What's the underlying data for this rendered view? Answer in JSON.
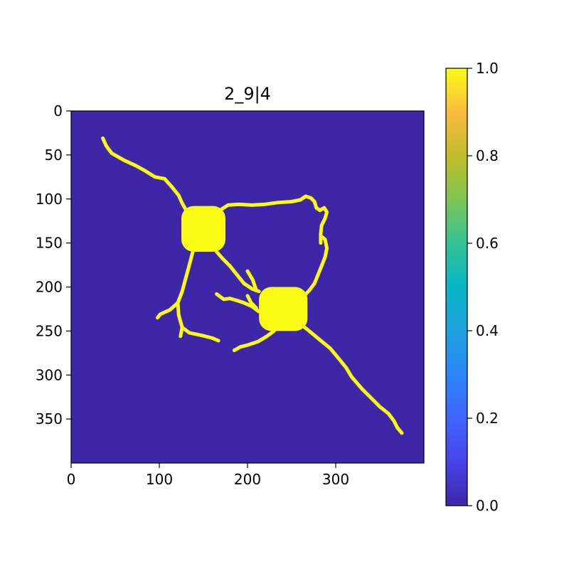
{
  "chart_data": [
    {
      "type": "heatmap",
      "title": "2_9|4",
      "xlabel": "",
      "ylabel": "",
      "image_shape": [
        400,
        400
      ],
      "xlim": [
        0,
        400
      ],
      "ylim": [
        400,
        0
      ],
      "x_ticks": [
        0,
        100,
        200,
        300
      ],
      "x_tick_labels": [
        "0",
        "100",
        "200",
        "300"
      ],
      "y_ticks": [
        0,
        50,
        100,
        150,
        200,
        250,
        300,
        350
      ],
      "y_tick_labels": [
        "0",
        "50",
        "100",
        "150",
        "200",
        "250",
        "300",
        "350"
      ],
      "background_value": 0.0,
      "foreground_value": 1.0,
      "cell_bodies": [
        {
          "x_range": [
            125,
            175
          ],
          "y_range": [
            108,
            160
          ],
          "value": 1.0
        },
        {
          "x_range": [
            213,
            268
          ],
          "y_range": [
            200,
            250
          ],
          "value": 1.0
        }
      ],
      "processes": [
        {
          "value": 1.0,
          "points": [
            [
              36,
              31
            ],
            [
              40,
              40
            ],
            [
              46,
              48
            ],
            [
              60,
              56
            ],
            [
              73,
              62
            ],
            [
              84,
              68
            ],
            [
              95,
              75
            ],
            [
              106,
              77
            ],
            [
              114,
              86
            ],
            [
              122,
              96
            ],
            [
              126,
              105
            ],
            [
              130,
              112
            ],
            [
              138,
              114
            ]
          ]
        },
        {
          "value": 1.0,
          "points": [
            [
              170,
              112
            ],
            [
              178,
              107
            ],
            [
              190,
              106
            ],
            [
              205,
              107
            ],
            [
              220,
              106
            ],
            [
              235,
              104
            ],
            [
              250,
              103
            ],
            [
              260,
              101
            ],
            [
              266,
              97
            ],
            [
              272,
              99
            ],
            [
              276,
              103
            ],
            [
              278,
              110
            ],
            [
              282,
              113
            ],
            [
              287,
              110
            ],
            [
              290,
              115
            ],
            [
              288,
              122
            ],
            [
              284,
              130
            ],
            [
              283,
              140
            ],
            [
              283,
              150
            ]
          ]
        },
        {
          "value": 1.0,
          "points": [
            [
              138,
              160
            ],
            [
              134,
              175
            ],
            [
              130,
              190
            ],
            [
              126,
              205
            ],
            [
              121,
              218
            ],
            [
              112,
              226
            ],
            [
              101,
              231
            ],
            [
              98,
              235
            ]
          ]
        },
        {
          "value": 1.0,
          "points": [
            [
              121,
              218
            ],
            [
              122,
              232
            ],
            [
              126,
              246
            ],
            [
              134,
              252
            ],
            [
              148,
              255
            ],
            [
              160,
              258
            ],
            [
              167,
              261
            ]
          ]
        },
        {
          "value": 1.0,
          "points": [
            [
              126,
              246
            ],
            [
              124,
              256
            ]
          ]
        },
        {
          "value": 1.0,
          "points": [
            [
              165,
              160
            ],
            [
              172,
              168
            ],
            [
              180,
              176
            ],
            [
              188,
              186
            ],
            [
              196,
              196
            ],
            [
              205,
              202
            ],
            [
              213,
              205
            ]
          ]
        },
        {
          "value": 1.0,
          "points": [
            [
              200,
              182
            ],
            [
              206,
              192
            ],
            [
              210,
              204
            ]
          ]
        },
        {
          "value": 1.0,
          "points": [
            [
              213,
              228
            ],
            [
              205,
              222
            ],
            [
              196,
              218
            ],
            [
              187,
              215
            ],
            [
              180,
              213
            ],
            [
              173,
              214
            ],
            [
              165,
              208
            ]
          ]
        },
        {
          "value": 1.0,
          "points": [
            [
              230,
              250
            ],
            [
              222,
              256
            ],
            [
              212,
              262
            ],
            [
              200,
              266
            ],
            [
              192,
              268
            ],
            [
              185,
              272
            ]
          ]
        },
        {
          "value": 1.0,
          "points": [
            [
              262,
              212
            ],
            [
              270,
              204
            ],
            [
              276,
              196
            ],
            [
              280,
              186
            ],
            [
              284,
              176
            ],
            [
              288,
              166
            ],
            [
              290,
              156
            ],
            [
              288,
              146
            ],
            [
              283,
              142
            ]
          ]
        },
        {
          "value": 1.0,
          "points": [
            [
              260,
              242
            ],
            [
              270,
              250
            ],
            [
              282,
              260
            ],
            [
              294,
              270
            ],
            [
              304,
              282
            ],
            [
              312,
              292
            ],
            [
              318,
              302
            ],
            [
              330,
              316
            ],
            [
              340,
              326
            ],
            [
              350,
              336
            ],
            [
              360,
              344
            ],
            [
              366,
              352
            ],
            [
              370,
              360
            ],
            [
              375,
              366
            ]
          ]
        },
        {
          "value": 1.0,
          "points": [
            [
              200,
              210
            ],
            [
              204,
              218
            ],
            [
              210,
              224
            ]
          ]
        }
      ],
      "colorbar": {
        "range": [
          0.0,
          1.0
        ],
        "ticks": [
          0.0,
          0.2,
          0.4,
          0.6,
          0.8,
          1.0
        ],
        "tick_labels": [
          "0.0",
          "0.2",
          "0.4",
          "0.6",
          "0.8",
          "1.0"
        ],
        "colormap": [
          {
            "stop": 0.0,
            "color": "#3e26a8"
          },
          {
            "stop": 0.1,
            "color": "#4744e8"
          },
          {
            "stop": 0.2,
            "color": "#3f65fd"
          },
          {
            "stop": 0.3,
            "color": "#2b86f6"
          },
          {
            "stop": 0.4,
            "color": "#1fa1de"
          },
          {
            "stop": 0.5,
            "color": "#09b6c6"
          },
          {
            "stop": 0.6,
            "color": "#35c193"
          },
          {
            "stop": 0.7,
            "color": "#7ec654"
          },
          {
            "stop": 0.8,
            "color": "#c2bc2a"
          },
          {
            "stop": 0.9,
            "color": "#fbbc3d"
          },
          {
            "stop": 1.0,
            "color": "#f9fb15"
          }
        ]
      }
    }
  ]
}
